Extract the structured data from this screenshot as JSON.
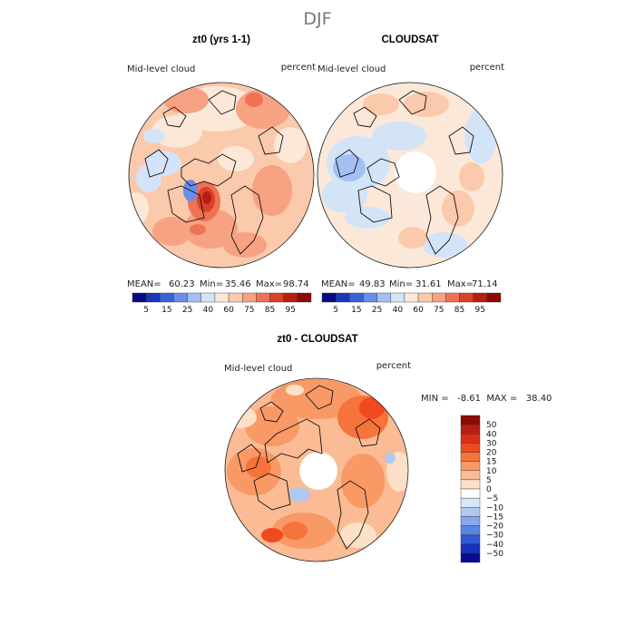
{
  "season": "DJF",
  "chart_data": [
    {
      "type": "heatmap",
      "title": "zt0 (yrs 1-1)",
      "left_label": "Mid-level cloud",
      "right_label": "percent",
      "stats": {
        "mean_label": "MEAN=",
        "mean": "60.23",
        "min_label": "Min=",
        "min": "35.46",
        "max_label": "Max=",
        "max": "98.74"
      },
      "colorbar_ticks": [
        "5",
        "15",
        "25",
        "40",
        "60",
        "75",
        "85",
        "95"
      ],
      "colors": [
        "#0a0a80",
        "#1838b8",
        "#3a62d8",
        "#6a8ee8",
        "#a4bff2",
        "#d4e4f8",
        "#fce8d8",
        "#fbc9ab",
        "#f7a282",
        "#ef7255",
        "#db4228",
        "#b81d12",
        "#8b0a05"
      ]
    },
    {
      "type": "heatmap",
      "title": "CLOUDSAT",
      "left_label": "Mid-level cloud",
      "right_label": "percent",
      "stats": {
        "mean_label": "MEAN=",
        "mean": "49.83",
        "min_label": "Min=",
        "min": "31.61",
        "max_label": "Max=",
        "max": "71.14"
      },
      "colorbar_ticks": [
        "5",
        "15",
        "25",
        "40",
        "60",
        "75",
        "85",
        "95"
      ],
      "colors": [
        "#0a0a80",
        "#1838b8",
        "#3a62d8",
        "#6a8ee8",
        "#a4bff2",
        "#d4e4f8",
        "#fce8d8",
        "#fbc9ab",
        "#f7a282",
        "#ef7255",
        "#db4228",
        "#b81d12",
        "#8b0a05"
      ]
    },
    {
      "type": "heatmap",
      "title": "zt0 - CLOUDSAT",
      "left_label": "Mid-level cloud",
      "right_label": "percent",
      "stats_text": "MIN =   -8.61  MAX =   38.40",
      "colorbar_ticks": [
        "50",
        "40",
        "30",
        "20",
        "15",
        "10",
        "5",
        "0",
        "−5",
        "−10",
        "−15",
        "−20",
        "−30",
        "−40",
        "−50"
      ],
      "colors": [
        "#8b0a05",
        "#b81d12",
        "#db2e14",
        "#f04a1e",
        "#f7733c",
        "#f99966",
        "#fbbb94",
        "#fde0c8",
        "#ffffff",
        "#d8e6f8",
        "#b0c8f2",
        "#86a8ec",
        "#5c84e4",
        "#3258d8",
        "#1830c0",
        "#0a0a90"
      ]
    }
  ]
}
